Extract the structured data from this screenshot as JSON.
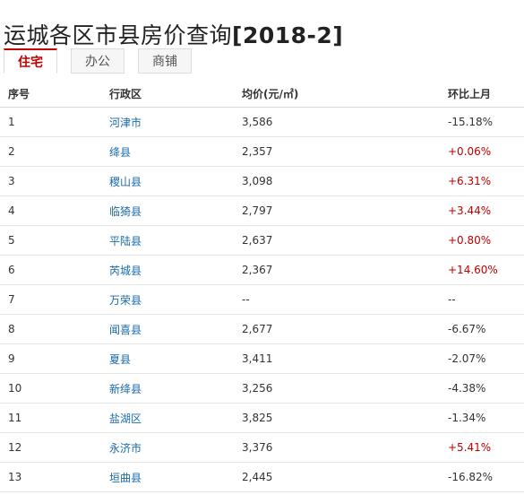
{
  "page": {
    "title": "运城各区市县房价查询",
    "title_suffix": "[2018-2]"
  },
  "tabs": [
    {
      "label": "住宅",
      "active": true
    },
    {
      "label": "办公",
      "active": false
    },
    {
      "label": "商铺",
      "active": false
    }
  ],
  "table": {
    "headers": {
      "index": "序号",
      "district": "行政区",
      "price": "均价(元/㎡)",
      "change": "环比上月"
    },
    "rows": [
      {
        "index": "1",
        "district": "河津市",
        "price": "3,586",
        "change": "-15.18%",
        "trend": "down"
      },
      {
        "index": "2",
        "district": "绛县",
        "price": "2,357",
        "change": "+0.06%",
        "trend": "up"
      },
      {
        "index": "3",
        "district": "稷山县",
        "price": "3,098",
        "change": "+6.31%",
        "trend": "up"
      },
      {
        "index": "4",
        "district": "临猗县",
        "price": "2,797",
        "change": "+3.44%",
        "trend": "up"
      },
      {
        "index": "5",
        "district": "平陆县",
        "price": "2,637",
        "change": "+0.80%",
        "trend": "up"
      },
      {
        "index": "6",
        "district": "芮城县",
        "price": "2,367",
        "change": "+14.60%",
        "trend": "up"
      },
      {
        "index": "7",
        "district": "万荣县",
        "price": "--",
        "change": "--",
        "trend": "none"
      },
      {
        "index": "8",
        "district": "闻喜县",
        "price": "2,677",
        "change": "-6.67%",
        "trend": "down"
      },
      {
        "index": "9",
        "district": "夏县",
        "price": "3,411",
        "change": "-2.07%",
        "trend": "down"
      },
      {
        "index": "10",
        "district": "新绛县",
        "price": "3,256",
        "change": "-4.38%",
        "trend": "down"
      },
      {
        "index": "11",
        "district": "盐湖区",
        "price": "3,825",
        "change": "-1.34%",
        "trend": "down"
      },
      {
        "index": "12",
        "district": "永济市",
        "price": "3,376",
        "change": "+5.41%",
        "trend": "up"
      },
      {
        "index": "13",
        "district": "垣曲县",
        "price": "2,445",
        "change": "-16.82%",
        "trend": "down"
      }
    ]
  },
  "colors": {
    "accent": "#c00000",
    "link": "#1a6aa8",
    "text": "#333333"
  }
}
